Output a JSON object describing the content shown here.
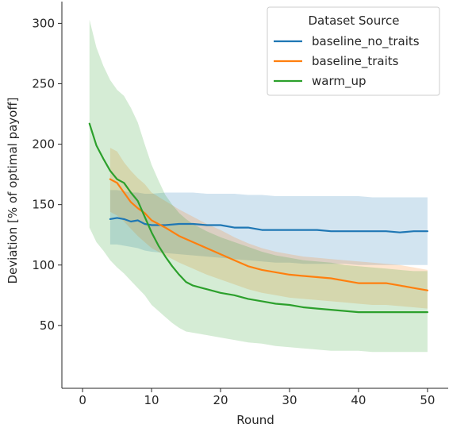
{
  "chart_data": {
    "type": "line",
    "xlabel": "Round",
    "ylabel": "Deviation [% of optimal payoff]",
    "xlim": [
      -3,
      53
    ],
    "ylim": [
      -2,
      318
    ],
    "x_ticks": [
      0,
      10,
      20,
      30,
      40,
      50
    ],
    "y_ticks": [
      50,
      100,
      150,
      200,
      250,
      300
    ],
    "grid": false,
    "legend": {
      "title": "Dataset Source",
      "placement": "top-right"
    },
    "series": [
      {
        "name": "baseline_no_traits",
        "color": "#1f77b4",
        "x": [
          4,
          5,
          6,
          7,
          8,
          9,
          10,
          12,
          14,
          16,
          18,
          20,
          22,
          24,
          26,
          28,
          30,
          32,
          34,
          36,
          38,
          40,
          42,
          44,
          46,
          48,
          50
        ],
        "y": [
          138,
          139,
          138,
          136,
          137,
          134,
          133,
          133,
          134,
          134,
          133,
          133,
          131,
          131,
          129,
          129,
          129,
          129,
          129,
          128,
          128,
          128,
          128,
          128,
          127,
          128,
          128
        ],
        "upper": [
          162,
          162,
          161,
          160,
          160,
          159,
          159,
          160,
          160,
          160,
          159,
          159,
          159,
          158,
          158,
          157,
          157,
          157,
          157,
          157,
          157,
          157,
          156,
          156,
          156,
          156,
          156
        ],
        "lower": [
          117,
          117,
          116,
          115,
          114,
          112,
          111,
          110,
          109,
          108,
          107,
          106,
          105,
          104,
          103,
          102,
          102,
          101,
          101,
          101,
          101,
          100,
          100,
          100,
          100,
          100,
          100
        ]
      },
      {
        "name": "baseline_traits",
        "color": "#ff7f0e",
        "x": [
          4,
          5,
          6,
          7,
          8,
          9,
          10,
          12,
          14,
          16,
          18,
          20,
          22,
          24,
          26,
          28,
          30,
          32,
          34,
          36,
          38,
          40,
          42,
          44,
          46,
          48,
          50
        ],
        "y": [
          171,
          168,
          160,
          152,
          147,
          143,
          137,
          131,
          124,
          119,
          114,
          109,
          104,
          99,
          96,
          94,
          92,
          91,
          90,
          89,
          87,
          85,
          85,
          85,
          83,
          81,
          79
        ],
        "upper": [
          197,
          194,
          185,
          178,
          172,
          167,
          160,
          153,
          146,
          140,
          134,
          129,
          123,
          118,
          114,
          111,
          109,
          107,
          106,
          105,
          104,
          103,
          102,
          101,
          100,
          98,
          96
        ],
        "lower": [
          144,
          141,
          136,
          130,
          124,
          119,
          114,
          108,
          102,
          97,
          92,
          88,
          84,
          80,
          77,
          75,
          73,
          72,
          71,
          70,
          69,
          68,
          67,
          67,
          66,
          65,
          64
        ]
      },
      {
        "name": "warm_up",
        "color": "#2ca02c",
        "x": [
          1,
          2,
          3,
          4,
          5,
          6,
          7,
          8,
          9,
          10,
          11,
          12,
          13,
          14,
          15,
          16,
          18,
          20,
          22,
          24,
          26,
          28,
          30,
          32,
          34,
          36,
          38,
          40,
          42,
          44,
          46,
          48,
          50
        ],
        "y": [
          217,
          199,
          188,
          178,
          171,
          168,
          160,
          153,
          140,
          127,
          116,
          107,
          99,
          92,
          86,
          83,
          80,
          77,
          75,
          72,
          70,
          68,
          67,
          65,
          64,
          63,
          62,
          61,
          61,
          61,
          61,
          61,
          61
        ],
        "upper": [
          303,
          280,
          265,
          253,
          245,
          240,
          230,
          218,
          200,
          183,
          170,
          158,
          150,
          143,
          138,
          134,
          128,
          123,
          119,
          115,
          111,
          108,
          106,
          104,
          103,
          102,
          100,
          99,
          98,
          97,
          96,
          95,
          95
        ],
        "lower": [
          131,
          119,
          112,
          104,
          98,
          93,
          87,
          81,
          75,
          67,
          62,
          57,
          52,
          48,
          45,
          44,
          42,
          40,
          38,
          36,
          35,
          33,
          32,
          31,
          30,
          29,
          29,
          29,
          28,
          28,
          28,
          28,
          28
        ]
      }
    ]
  }
}
